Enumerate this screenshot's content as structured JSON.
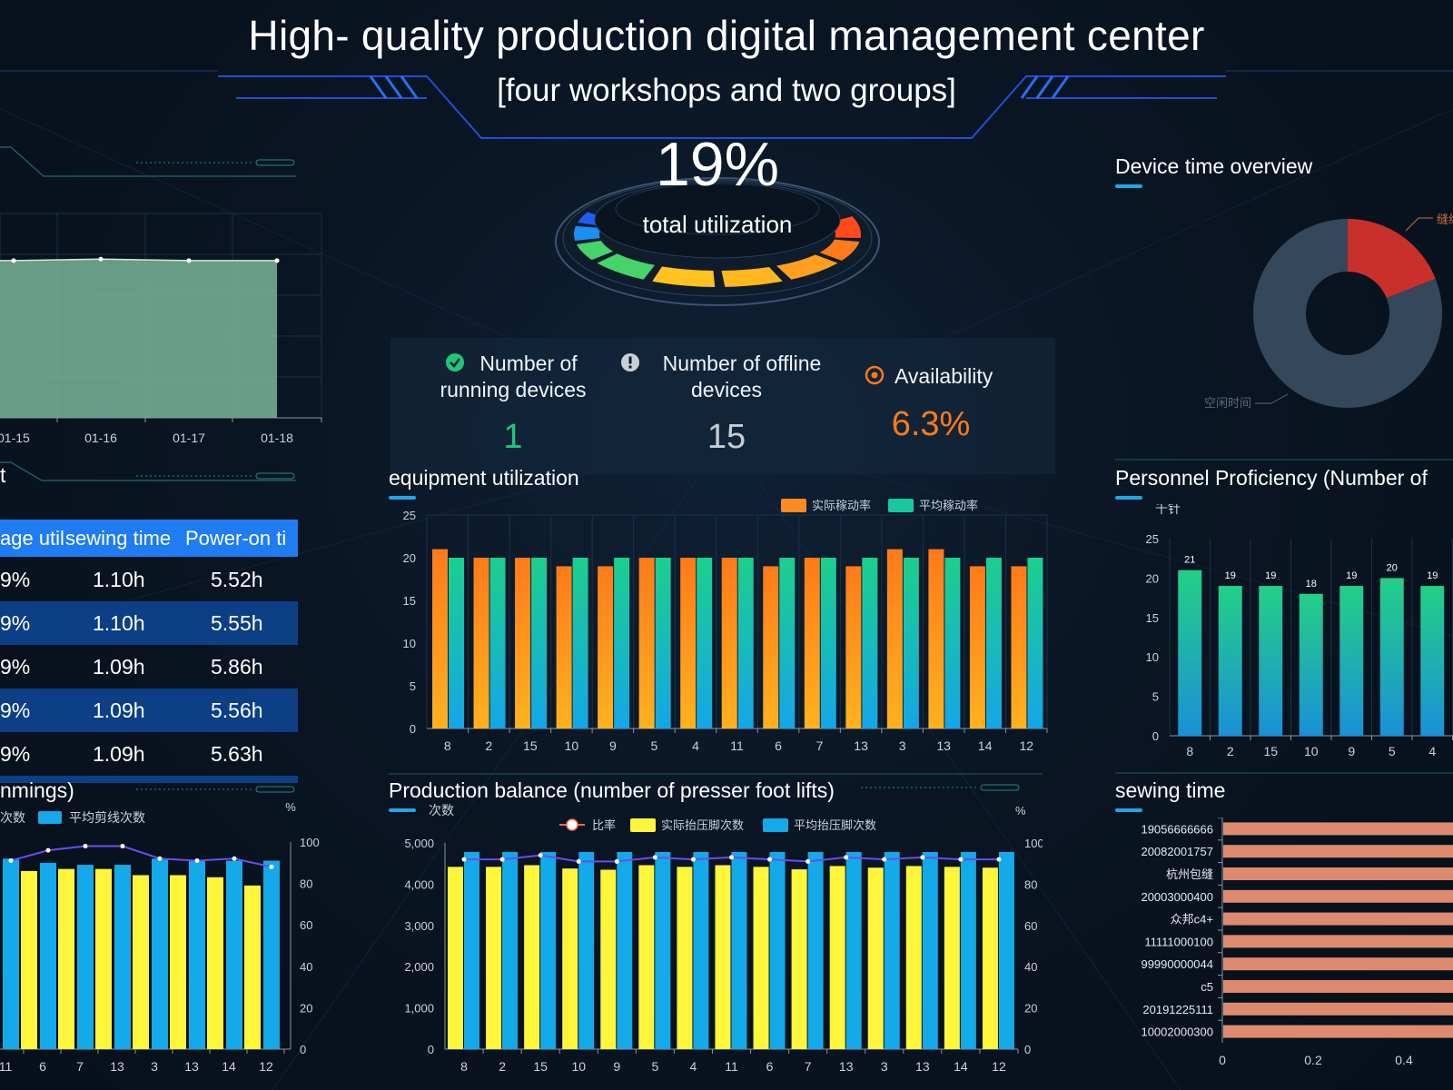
{
  "header": {
    "title": "High- quality production digital management center",
    "subtitle": "[four workshops and two groups]"
  },
  "gauge": {
    "value": "19%",
    "label": "total utilization"
  },
  "kpis": {
    "running": {
      "label_line1": "Number of",
      "label_line2": "running devices",
      "value": "1",
      "icon": "check-circle-icon"
    },
    "offline": {
      "label_line1": "Number of offline",
      "label_line2": "devices",
      "value": "15",
      "icon": "exclamation-circle-icon"
    },
    "availability": {
      "label": "Availability",
      "value": "6.3%",
      "icon": "target-icon"
    }
  },
  "colors": {
    "orange": "#ff8a1f",
    "teal": "#18c8a0",
    "blue": "#14a9e8",
    "yellow": "#fff53b",
    "salmon": "#de8a6e",
    "red": "#c9302c"
  },
  "left_top_chart": {
    "chart_data": {
      "type": "area",
      "x": [
        "01-15",
        "01-16",
        "01-17",
        "01-18"
      ],
      "values": [
        100,
        101,
        100,
        100
      ],
      "ylim": [
        0,
        130
      ]
    }
  },
  "table": {
    "title_fragment": "t",
    "columns": [
      "age util",
      "sewing time",
      "Power-on ti"
    ],
    "rows": [
      {
        "c1": "9%",
        "c2": "1.10h",
        "c3": "5.52h"
      },
      {
        "c1": "9%",
        "c2": "1.10h",
        "c3": "5.55h"
      },
      {
        "c1": "9%",
        "c2": "1.09h",
        "c3": "5.86h"
      },
      {
        "c1": "9%",
        "c2": "1.09h",
        "c3": "5.56h"
      },
      {
        "c1": "9%",
        "c2": "1.09h",
        "c3": "5.63h"
      }
    ]
  },
  "trimmings": {
    "title": "nmings)",
    "chart_data": {
      "type": "bar",
      "categories": [
        "11",
        "6",
        "7",
        "13",
        "3",
        "13",
        "14",
        "12"
      ],
      "legend": [
        "次数",
        "平均剪线次数"
      ],
      "series": [
        {
          "name": "次数",
          "values": [
            88,
            86,
            87,
            87,
            84,
            84,
            83,
            79
          ]
        },
        {
          "name": "平均剪线次数",
          "values": [
            92,
            90,
            89,
            89,
            92,
            91,
            91,
            91
          ]
        }
      ],
      "ratio": [
        91,
        96,
        98,
        98,
        92,
        91,
        92,
        88
      ],
      "ylim_right": [
        0,
        100
      ],
      "y_ticks_right": [
        "0",
        "20",
        "40",
        "60",
        "80",
        "100"
      ],
      "unit_right": "%"
    }
  },
  "equipment": {
    "title": "equipment utilization",
    "chart_data": {
      "type": "bar",
      "categories": [
        "8",
        "2",
        "15",
        "10",
        "9",
        "5",
        "4",
        "11",
        "6",
        "7",
        "13",
        "3",
        "13",
        "14",
        "12"
      ],
      "series": [
        {
          "name": "实际稼动率",
          "values": [
            21,
            20,
            20,
            19,
            19,
            20,
            20,
            20,
            19,
            20,
            19,
            21,
            21,
            19,
            19
          ]
        },
        {
          "name": "平均稼动率",
          "values": [
            20,
            20,
            20,
            20,
            20,
            20,
            20,
            20,
            20,
            20,
            20,
            20,
            20,
            20,
            20
          ]
        }
      ],
      "ylim": [
        0,
        25
      ],
      "y_ticks": [
        "0",
        "5",
        "10",
        "15",
        "20",
        "25"
      ]
    }
  },
  "production": {
    "title": "Production balance (number of presser foot lifts)",
    "chart_data": {
      "type": "bar",
      "categories": [
        "8",
        "2",
        "15",
        "10",
        "9",
        "5",
        "4",
        "11",
        "6",
        "7",
        "13",
        "3",
        "13",
        "14",
        "12"
      ],
      "legend": [
        "比率",
        "实际抬压脚次数",
        "平均抬压脚次数"
      ],
      "series": [
        {
          "name": "实际抬压脚次数",
          "values": [
            4420,
            4420,
            4460,
            4380,
            4350,
            4460,
            4420,
            4460,
            4420,
            4360,
            4440,
            4400,
            4440,
            4420,
            4400
          ]
        },
        {
          "name": "平均抬压脚次数",
          "values": [
            4780,
            4780,
            4780,
            4780,
            4780,
            4780,
            4780,
            4780,
            4780,
            4780,
            4780,
            4780,
            4780,
            4780,
            4780
          ]
        }
      ],
      "ratio": [
        92,
        92,
        94,
        91,
        91,
        93,
        92,
        93,
        92,
        91,
        93,
        92,
        93,
        92,
        92
      ],
      "ylim": [
        0,
        5000
      ],
      "y_ticks": [
        "0",
        "1,000",
        "2,000",
        "3,000",
        "4,000",
        "5,000"
      ],
      "ylim_right": [
        0,
        100
      ],
      "y_ticks_right": [
        "0",
        "20",
        "40",
        "60",
        "80",
        "100"
      ],
      "ylabel": "次数",
      "unit_right": "%"
    }
  },
  "device_time": {
    "title": "Device time overview",
    "chart_data": {
      "type": "pie",
      "slices": [
        {
          "label": "缝纫",
          "value": 19
        },
        {
          "label": "空闲时间",
          "value": 81
        }
      ],
      "label_top": "缝纫",
      "label_bottom": "空闲时间"
    }
  },
  "personnel": {
    "title": "Personnel Proficiency (Number of",
    "chart_data": {
      "type": "bar",
      "categories": [
        "8",
        "2",
        "15",
        "10",
        "9",
        "5",
        "4"
      ],
      "values": [
        21,
        19,
        19,
        18,
        19,
        20,
        19
      ],
      "ylim": [
        0,
        25
      ],
      "y_ticks": [
        "0",
        "5",
        "10",
        "15",
        "20",
        "25"
      ],
      "ylabel": "千针"
    }
  },
  "sewing": {
    "title": "sewing time",
    "chart_data": {
      "type": "bar",
      "categories": [
        "19056666666",
        "20082001757",
        "杭州包缝",
        "20003000400",
        "众邦c4+",
        "11111000100",
        "99990000044",
        "c5",
        "20191225111",
        "10002000300"
      ],
      "values": [
        0.6,
        0.6,
        0.6,
        0.6,
        0.6,
        0.6,
        0.6,
        0.6,
        0.6,
        0.6
      ],
      "x_ticks": [
        "0",
        "0.2",
        "0.4"
      ]
    }
  }
}
